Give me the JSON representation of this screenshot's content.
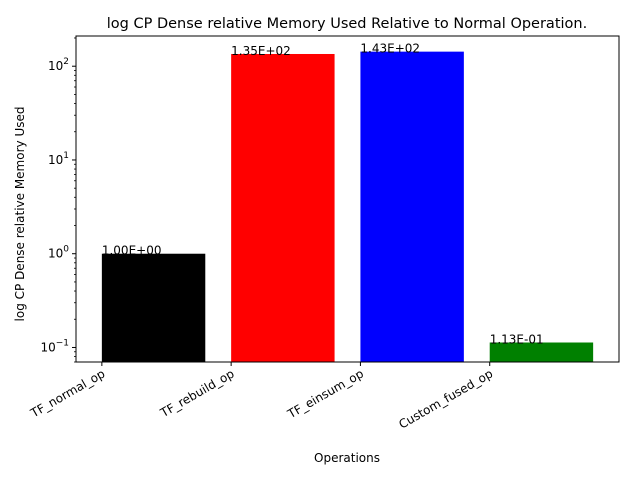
{
  "chart_data": {
    "type": "bar",
    "title": "log CP Dense relative Memory Used Relative to Normal Operation.",
    "xlabel": "Operations",
    "ylabel": "log CP Dense relative Memory Used",
    "yscale": "log",
    "ylim": [
      0.07,
      210
    ],
    "yticks": [
      {
        "value": 0.1,
        "base": "10",
        "exp": "−1"
      },
      {
        "value": 1,
        "base": "10",
        "exp": "0"
      },
      {
        "value": 10,
        "base": "10",
        "exp": "1"
      },
      {
        "value": 100,
        "base": "10",
        "exp": "2"
      }
    ],
    "categories": [
      "TF_normal_op",
      "TF_rebuild_op",
      "TF_einsum_op",
      "Custom_fused_op"
    ],
    "values": [
      1.0,
      135,
      143,
      0.113
    ],
    "data_labels": [
      "1.00E+00",
      "1.35E+02",
      "1.43E+02",
      "1.13E-01"
    ],
    "colors": [
      "#000000",
      "#ff0000",
      "#0000ff",
      "#008000"
    ],
    "grid": false,
    "legend": "none"
  }
}
